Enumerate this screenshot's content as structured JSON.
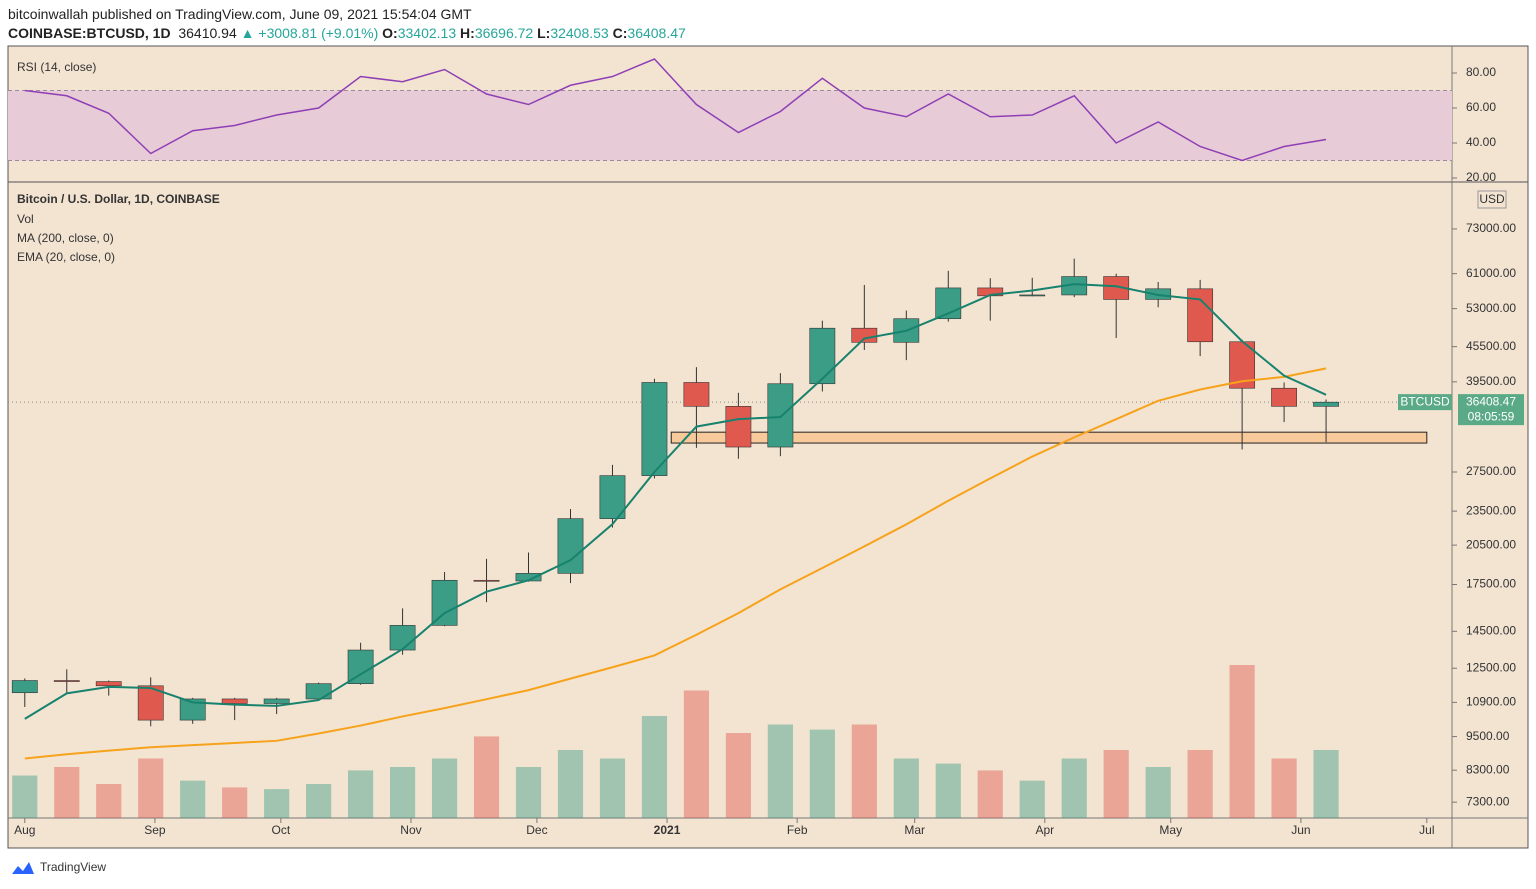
{
  "header": {
    "byline": "bitcoinwallah published on TradingView.com, June 09, 2021 15:54:04 GMT",
    "symbol": "COINBASE:BTCUSD, 1D",
    "last": "36410.94",
    "change": "▲ +3008.81 (+9.01%)",
    "o_label": "O:",
    "o": "33402.13",
    "h_label": "H:",
    "h": "36696.72",
    "l_label": "L:",
    "l": "32408.53",
    "c_label": "C:",
    "c": "36408.47"
  },
  "footer": {
    "brand": "TradingView"
  },
  "chart_data": [
    {
      "type": "line",
      "title": "RSI (14, close)",
      "x": [
        0,
        10,
        20,
        30,
        40,
        50,
        60,
        70,
        80,
        90,
        100,
        110,
        120,
        130,
        140,
        150,
        160,
        170,
        180,
        190,
        200,
        210,
        220,
        230,
        240,
        250,
        260,
        270,
        280,
        290,
        300,
        310
      ],
      "values": [
        70,
        67,
        57,
        34,
        47,
        50,
        56,
        60,
        78,
        75,
        82,
        68,
        62,
        73,
        78,
        88,
        62,
        46,
        58,
        77,
        60,
        55,
        68,
        55,
        56,
        67,
        40,
        52,
        38,
        30,
        38,
        42
      ],
      "color": "#8e3fb5",
      "band": [
        30,
        70
      ],
      "band_color": "#e7cbd6",
      "xlim": [
        -4,
        340
      ],
      "ylim": [
        17.7,
        94.3
      ],
      "yticks": [
        {
          "value": 80,
          "label": "80.00"
        },
        {
          "value": 60,
          "label": "60.00"
        },
        {
          "value": 40,
          "label": "40.00"
        },
        {
          "value": 20,
          "label": "20.00"
        }
      ]
    },
    {
      "type": "candlestick",
      "title": "Bitcoin / U.S. Dollar, 1D, COINBASE",
      "legend": [
        "Vol",
        "MA (200, close, 0)",
        "EMA (20, close, 0)"
      ],
      "axis_unit": "USD",
      "x": [
        0,
        10,
        20,
        30,
        40,
        50,
        60,
        70,
        80,
        90,
        100,
        110,
        120,
        130,
        140,
        150,
        160,
        170,
        180,
        190,
        200,
        210,
        220,
        230,
        240,
        250,
        260,
        270,
        280,
        290,
        300,
        310
      ],
      "open": [
        11330,
        11900,
        11850,
        11650,
        10150,
        11050,
        10850,
        11050,
        11750,
        13450,
        14850,
        17800,
        17750,
        18300,
        22800,
        27100,
        39400,
        35800,
        30400,
        39200,
        49000,
        46300,
        50900,
        57600,
        55800,
        56000,
        60300,
        55000,
        57400,
        46400,
        38500,
        35800
      ],
      "high": [
        12000,
        12450,
        11900,
        12050,
        11100,
        11100,
        11100,
        11800,
        13850,
        15900,
        18400,
        19400,
        19900,
        23700,
        28300,
        40000,
        41900,
        37800,
        40900,
        50500,
        58300,
        52600,
        61700,
        59900,
        60000,
        64800,
        61000,
        59000,
        59500,
        46800,
        39400,
        36800
      ],
      "low": [
        10700,
        11300,
        11200,
        9900,
        10000,
        10150,
        10400,
        11000,
        11700,
        13200,
        14800,
        16300,
        17700,
        17600,
        22000,
        26800,
        30300,
        29000,
        29300,
        38000,
        44900,
        43100,
        50300,
        50500,
        55700,
        55500,
        47100,
        53300,
        43800,
        30100,
        33600,
        31000
      ],
      "close": [
        11900,
        11850,
        11650,
        10150,
        11050,
        10850,
        11050,
        11750,
        13450,
        14850,
        17800,
        17750,
        18300,
        22800,
        27100,
        39400,
        35800,
        30400,
        39200,
        49000,
        46300,
        50900,
        57600,
        55800,
        56000,
        60300,
        55000,
        57400,
        46400,
        38500,
        35800,
        36400
      ],
      "up_color": "#3b9d86",
      "down_color": "#e0594f",
      "volume": [
        25000,
        30000,
        20000,
        35000,
        22000,
        18000,
        17000,
        20000,
        28000,
        30000,
        35000,
        48000,
        30000,
        40000,
        35000,
        60000,
        75000,
        50000,
        55000,
        52000,
        55000,
        35000,
        32000,
        28000,
        22000,
        35000,
        40000,
        30000,
        40000,
        90000,
        35000,
        40000
      ],
      "vlim": [
        0,
        100000
      ],
      "ma200": {
        "color": "#f7a21b",
        "values": [
          8700,
          8850,
          8980,
          9100,
          9180,
          9260,
          9340,
          9620,
          9930,
          10300,
          10650,
          11040,
          11450,
          11990,
          12550,
          13160,
          14300,
          15600,
          17160,
          18700,
          20400,
          22280,
          24500,
          26800,
          29260,
          31600,
          34000,
          36600,
          38300,
          39600,
          40300,
          41700
        ]
      },
      "ema20": {
        "color": "#17826d",
        "values": [
          10200,
          11300,
          11600,
          11550,
          10900,
          10800,
          10750,
          11000,
          12200,
          13500,
          15600,
          17000,
          17800,
          19300,
          22300,
          27500,
          33000,
          34000,
          34300,
          40000,
          47000,
          48500,
          52000,
          56000,
          57000,
          58500,
          58000,
          56000,
          55000,
          46500,
          40500,
          37500
        ]
      },
      "zone": {
        "x": [
          154,
          334
        ],
        "y": [
          30890,
          32270
        ],
        "color": "#f8c99a"
      },
      "last": {
        "value": 36408.47,
        "symbol": "BTCUSD",
        "countdown": "08:05:59",
        "color": "#5aa987"
      },
      "log": true,
      "xlim": [
        -4,
        340
      ],
      "ylim": [
        6850,
        87800
      ],
      "yticks": [
        {
          "value": 73000,
          "label": "73000.00"
        },
        {
          "value": 61000,
          "label": "61000.00"
        },
        {
          "value": 53000,
          "label": "53000.00"
        },
        {
          "value": 45500,
          "label": "45500.00"
        },
        {
          "value": 39500,
          "label": "39500.00"
        },
        {
          "value": 27500,
          "label": "27500.00"
        },
        {
          "value": 23500,
          "label": "23500.00"
        },
        {
          "value": 20500,
          "label": "20500.00"
        },
        {
          "value": 17500,
          "label": "17500.00"
        },
        {
          "value": 14500,
          "label": "14500.00"
        },
        {
          "value": 12500,
          "label": "12500.00"
        },
        {
          "value": 10900,
          "label": "10900.00"
        },
        {
          "value": 9500,
          "label": "9500.00"
        },
        {
          "value": 8300,
          "label": "8300.00"
        },
        {
          "value": 7300,
          "label": "7300.00"
        }
      ],
      "xticks": [
        {
          "value": 0,
          "label": "Aug"
        },
        {
          "value": 31,
          "label": "Sep"
        },
        {
          "value": 61,
          "label": "Oct"
        },
        {
          "value": 92,
          "label": "Nov"
        },
        {
          "value": 122,
          "label": "Dec"
        },
        {
          "value": 153,
          "label": "2021"
        },
        {
          "value": 184,
          "label": "Feb"
        },
        {
          "value": 212,
          "label": "Mar"
        },
        {
          "value": 243,
          "label": "Apr"
        },
        {
          "value": 273,
          "label": "May"
        },
        {
          "value": 304,
          "label": "Jun"
        },
        {
          "value": 334,
          "label": "Jul"
        }
      ]
    }
  ]
}
